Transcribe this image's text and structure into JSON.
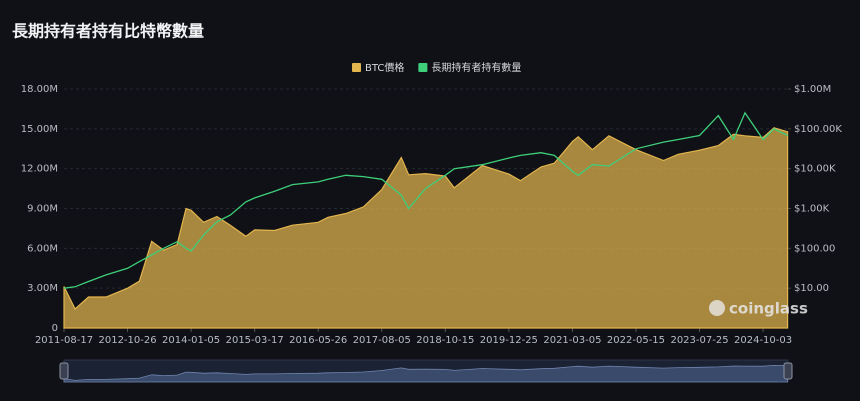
{
  "chart_data": {
    "type": "line",
    "title": "長期持有者持有比特幣數量",
    "watermark": "coinglass",
    "x": [
      "2011-08-17",
      "2011-11-01",
      "2012-02-01",
      "2012-06-01",
      "2012-10-26",
      "2013-01-15",
      "2013-04-10",
      "2013-07-01",
      "2013-10-01",
      "2013-12-01",
      "2014-01-05",
      "2014-04-01",
      "2014-07-01",
      "2014-10-01",
      "2015-01-15",
      "2015-03-17",
      "2015-08-01",
      "2015-12-01",
      "2016-05-26",
      "2016-08-01",
      "2016-12-01",
      "2017-04-01",
      "2017-08-05",
      "2017-12-17",
      "2018-02-06",
      "2018-06-01",
      "2018-10-15",
      "2018-12-15",
      "2019-06-26",
      "2019-12-25",
      "2020-03-13",
      "2020-08-01",
      "2020-11-01",
      "2021-03-05",
      "2021-04-14",
      "2021-07-20",
      "2021-11-10",
      "2022-05-15",
      "2022-11-20",
      "2023-03-01",
      "2023-07-25",
      "2023-12-01",
      "2024-03-14",
      "2024-06-01",
      "2024-10-03",
      "2024-12-17",
      "2025-03-20"
    ],
    "xlim": [
      "2011-08-17",
      "2025-03-23"
    ],
    "xticks": [
      "2011-08-17",
      "2012-10-26",
      "2014-01-05",
      "2015-03-17",
      "2016-05-26",
      "2017-08-05",
      "2018-10-15",
      "2019-12-25",
      "2021-03-05",
      "2022-05-15",
      "2023-07-25",
      "2024-10-03"
    ],
    "series": [
      {
        "name": "BTC價格",
        "color": "#e3b54e",
        "axis": "y2",
        "values": [
          11,
          3,
          6,
          6,
          10,
          15,
          150,
          90,
          125,
          1000,
          900,
          450,
          630,
          380,
          200,
          290,
          280,
          380,
          450,
          600,
          750,
          1100,
          3000,
          19000,
          7000,
          7500,
          6500,
          3300,
          12000,
          7300,
          5000,
          11000,
          13700,
          48000,
          63000,
          30000,
          67000,
          30000,
          16000,
          23000,
          29000,
          38000,
          73000,
          67000,
          61000,
          106000,
          84000
        ]
      },
      {
        "name": "長期持有者持有數量",
        "color": "#3ecf7a",
        "values": [
          3000000,
          3100000,
          3500000,
          4000000,
          4500000,
          5000000,
          5500000,
          6000000,
          6500000,
          6000000,
          5800000,
          7000000,
          8000000,
          8500000,
          9500000,
          9800000,
          10300000,
          10800000,
          11000000,
          11200000,
          11500000,
          11400000,
          11200000,
          10000000,
          9000000,
          10500000,
          11500000,
          12000000,
          12300000,
          12800000,
          13000000,
          13200000,
          13000000,
          11800000,
          11500000,
          12300000,
          12200000,
          13500000,
          14000000,
          14200000,
          14500000,
          16000000,
          14200000,
          16200000,
          14200000,
          15000000,
          14500000
        ]
      }
    ],
    "ylim": [
      0,
      18000000
    ],
    "yticks": [
      0,
      {
        "value": 3000000,
        "label": "3.00M"
      },
      {
        "value": 6000000,
        "label": "6.00M"
      },
      {
        "value": 9000000,
        "label": "9.00M"
      },
      {
        "value": 12000000,
        "label": "12.00M"
      },
      {
        "value": 15000000,
        "label": "15.00M"
      },
      {
        "value": 18000000,
        "label": "18.00M"
      }
    ],
    "y2lim": [
      1,
      1000000
    ],
    "y2log": true,
    "y2ticks": [
      {
        "value": 10,
        "label": "$10.00"
      },
      {
        "value": 100,
        "label": "$100.00"
      },
      {
        "value": 1000,
        "label": "$1.00K"
      },
      {
        "value": 10000,
        "label": "$10.00K"
      },
      {
        "value": 100000,
        "label": "$100.00K"
      },
      {
        "value": 1000000,
        "label": "$1.00M"
      }
    ]
  }
}
